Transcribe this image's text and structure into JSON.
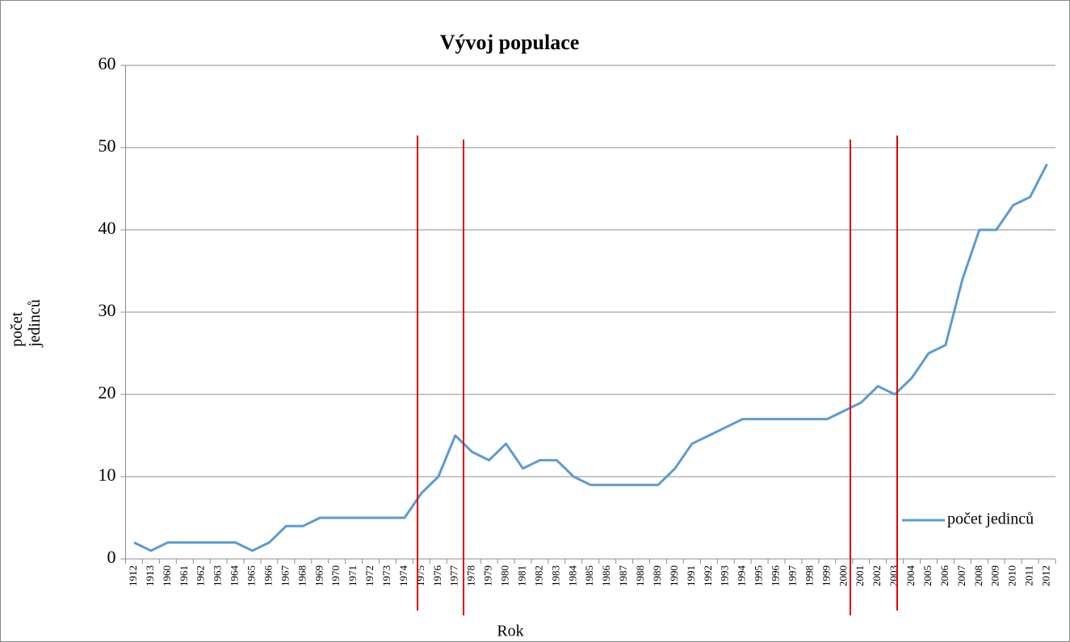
{
  "chart_data": {
    "type": "line",
    "title": "Vývoj populace",
    "xlabel": "Rok",
    "ylabel": "počet jedinců",
    "categories": [
      "1912",
      "1913",
      "1960",
      "1961",
      "1962",
      "1963",
      "1964",
      "1965",
      "1966",
      "1967",
      "1968",
      "1969",
      "1970",
      "1971",
      "1972",
      "1973",
      "1974",
      "1975",
      "1976",
      "1977",
      "1978",
      "1979",
      "1980",
      "1981",
      "1982",
      "1983",
      "1984",
      "1985",
      "1986",
      "1987",
      "1988",
      "1989",
      "1990",
      "1991",
      "1992",
      "1993",
      "1994",
      "1995",
      "1996",
      "1997",
      "1998",
      "1999",
      "2000",
      "2001",
      "2002",
      "2003",
      "2004",
      "2005",
      "2006",
      "2007",
      "2008",
      "2009",
      "2010",
      "2011",
      "2012"
    ],
    "series": [
      {
        "name": "počet jedinců",
        "color": "#5b9bd5",
        "values": [
          2,
          1,
          2,
          2,
          2,
          2,
          2,
          1,
          2,
          4,
          4,
          5,
          5,
          5,
          5,
          5,
          5,
          8,
          10,
          15,
          13,
          12,
          14,
          11,
          12,
          12,
          10,
          9,
          9,
          9,
          9,
          9,
          11,
          14,
          15,
          16,
          17,
          17,
          17,
          17,
          17,
          17,
          18,
          19,
          21,
          20,
          22,
          25,
          26,
          34,
          40,
          40,
          43,
          44,
          48
        ]
      }
    ],
    "ylim": [
      0,
      60
    ],
    "yticks": [
      0,
      10,
      20,
      30,
      40,
      50,
      60
    ],
    "grid": true,
    "legend": "right"
  }
}
